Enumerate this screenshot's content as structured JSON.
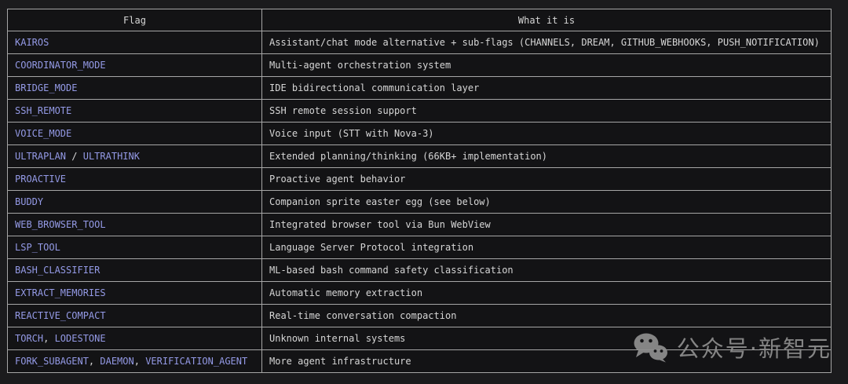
{
  "table": {
    "headers": [
      "Flag",
      "What it is"
    ],
    "rows": [
      {
        "flag_parts": [
          {
            "text": "KAIROS",
            "type": "link"
          }
        ],
        "description": "Assistant/chat mode alternative + sub-flags (CHANNELS, DREAM, GITHUB_WEBHOOKS, PUSH_NOTIFICATION)"
      },
      {
        "flag_parts": [
          {
            "text": "COORDINATOR_MODE",
            "type": "link"
          }
        ],
        "description": "Multi-agent orchestration system"
      },
      {
        "flag_parts": [
          {
            "text": "BRIDGE_MODE",
            "type": "link"
          }
        ],
        "description": "IDE bidirectional communication layer"
      },
      {
        "flag_parts": [
          {
            "text": "SSH_REMOTE",
            "type": "link"
          }
        ],
        "description": "SSH remote session support"
      },
      {
        "flag_parts": [
          {
            "text": "VOICE_MODE",
            "type": "link"
          }
        ],
        "description": "Voice input (STT with Nova-3)"
      },
      {
        "flag_parts": [
          {
            "text": "ULTRAPLAN",
            "type": "link"
          },
          {
            "text": " / ",
            "type": "text"
          },
          {
            "text": "ULTRATHINK",
            "type": "link"
          }
        ],
        "description": "Extended planning/thinking (66KB+ implementation)"
      },
      {
        "flag_parts": [
          {
            "text": "PROACTIVE",
            "type": "link"
          }
        ],
        "description": "Proactive agent behavior"
      },
      {
        "flag_parts": [
          {
            "text": "BUDDY",
            "type": "link"
          }
        ],
        "description": "Companion sprite easter egg (see below)"
      },
      {
        "flag_parts": [
          {
            "text": "WEB_BROWSER_TOOL",
            "type": "link"
          }
        ],
        "description": "Integrated browser tool via Bun WebView"
      },
      {
        "flag_parts": [
          {
            "text": "LSP_TOOL",
            "type": "link"
          }
        ],
        "description": "Language Server Protocol integration"
      },
      {
        "flag_parts": [
          {
            "text": "BASH_CLASSIFIER",
            "type": "link"
          }
        ],
        "description": "ML-based bash command safety classification"
      },
      {
        "flag_parts": [
          {
            "text": "EXTRACT_MEMORIES",
            "type": "link"
          }
        ],
        "description": "Automatic memory extraction"
      },
      {
        "flag_parts": [
          {
            "text": "REACTIVE_COMPACT",
            "type": "link"
          }
        ],
        "description": "Real-time conversation compaction"
      },
      {
        "flag_parts": [
          {
            "text": "TORCH",
            "type": "link"
          },
          {
            "text": ", ",
            "type": "text"
          },
          {
            "text": "LODESTONE",
            "type": "link"
          }
        ],
        "description": "Unknown internal systems"
      },
      {
        "flag_parts": [
          {
            "text": "FORK_SUBAGENT",
            "type": "link"
          },
          {
            "text": ", ",
            "type": "text"
          },
          {
            "text": "DAEMON",
            "type": "link"
          },
          {
            "text": ", ",
            "type": "text"
          },
          {
            "text": "VERIFICATION_AGENT",
            "type": "link"
          }
        ],
        "description": "More agent infrastructure"
      }
    ]
  },
  "watermark": {
    "icon": "wechat-icon",
    "text": "公众号·新智元"
  },
  "colors": {
    "page_bg": "#1b1b1d",
    "cell_bg": "#131315",
    "border": "#a6a6a6",
    "text": "#d6d6d6",
    "flag_link": "#949ae6",
    "watermark": "#8f8f8f"
  }
}
